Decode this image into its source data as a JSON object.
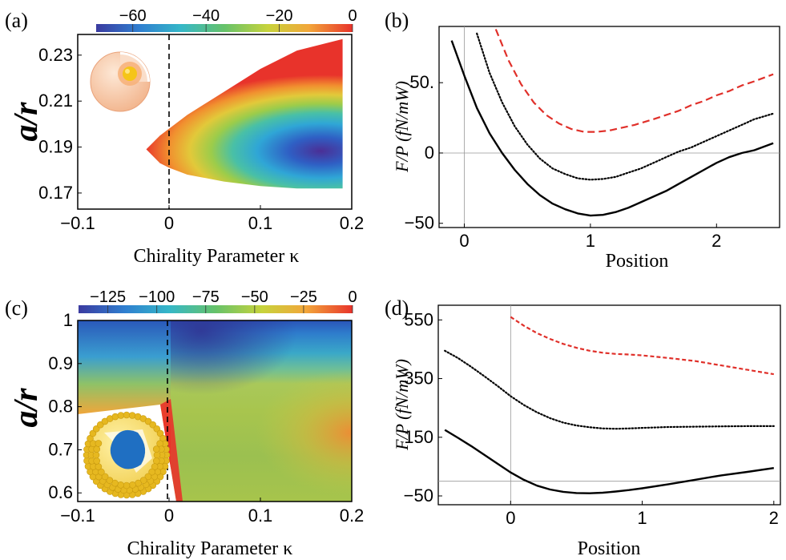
{
  "colorscale": [
    "#3b3ba0",
    "#2f7fd0",
    "#35b7c8",
    "#66c26a",
    "#c7d33c",
    "#f2a63a",
    "#e8332b"
  ],
  "panels": [
    {
      "id": "a",
      "label": "(a)",
      "type": "heatmap",
      "xlabel": "Chirality Parameter κ",
      "ylabel": "a/r",
      "xlim": [
        -0.1,
        0.2
      ],
      "ylim": [
        0.163,
        0.239
      ],
      "xticks": [
        -0.1,
        0,
        0.1,
        0.2
      ],
      "xtick_labels": [
        "−0.1",
        "0",
        "0.1",
        "0.2"
      ],
      "yticks": [
        0.17,
        0.19,
        0.21,
        0.23
      ],
      "ytick_labels": [
        "0.17",
        "0.19",
        "0.21",
        "0.23"
      ],
      "colorbar": {
        "range": [
          -70,
          0
        ],
        "ticks": [
          -60,
          -40,
          -20,
          0
        ],
        "tick_labels": [
          "−60",
          "−40",
          "−20",
          "0"
        ]
      },
      "minimum": {
        "kappa": 0.17,
        "ar": 0.191,
        "value": -70
      },
      "region_boundary": [
        [
          -0.025,
          0.189
        ],
        [
          -0.01,
          0.195
        ],
        [
          0.02,
          0.204
        ],
        [
          0.06,
          0.214
        ],
        [
          0.1,
          0.224
        ],
        [
          0.14,
          0.232
        ],
        [
          0.19,
          0.237
        ],
        [
          0.19,
          0.172
        ],
        [
          0.14,
          0.172
        ],
        [
          0.1,
          0.173
        ],
        [
          0.06,
          0.175
        ],
        [
          0.02,
          0.178
        ],
        [
          0.0,
          0.181
        ],
        [
          -0.01,
          0.183
        ],
        [
          -0.025,
          0.189
        ]
      ],
      "dashed_line_x": 0,
      "inset_icon": "sphere-cutaway-icon"
    },
    {
      "id": "c",
      "label": "(c)",
      "type": "heatmap",
      "xlabel": "Chirality Parameter κ",
      "ylabel": "a/r",
      "xlim": [
        -0.1,
        0.2
      ],
      "ylim": [
        0.58,
        1.0
      ],
      "xticks": [
        -0.1,
        0,
        0.1,
        0.2
      ],
      "xtick_labels": [
        "−0.1",
        "0",
        "0.1",
        "0.2"
      ],
      "yticks": [
        0.6,
        0.7,
        0.8,
        0.9,
        1.0
      ],
      "ytick_labels": [
        "0.6",
        "0.7",
        "0.8",
        "0.9",
        "1"
      ],
      "colorbar": {
        "range": [
          -140,
          0
        ],
        "ticks": [
          -125,
          -100,
          -75,
          -50,
          -25,
          0
        ],
        "tick_labels": [
          "−125",
          "−100",
          "−75",
          "−50",
          "−25",
          "0"
        ]
      },
      "dashed_line_x": 0,
      "inset_icon": "sphere-with-nanoparticles-icon"
    },
    {
      "id": "b",
      "label": "(b)",
      "type": "line",
      "xlabel": "Position",
      "ylabel": "F/P (fN/mW)",
      "xlim": [
        -0.2,
        2.5
      ],
      "ylim": [
        -53,
        90
      ],
      "xticks": [
        0,
        1,
        2
      ],
      "xtick_labels": [
        "0",
        "1",
        "2"
      ],
      "yticks": [
        -50,
        0,
        50
      ],
      "ytick_labels": [
        "−50",
        "0",
        "50."
      ],
      "series": [
        {
          "style": "solid",
          "color": "#000000",
          "x": [
            -0.1,
            0.0,
            0.1,
            0.2,
            0.3,
            0.4,
            0.5,
            0.6,
            0.7,
            0.8,
            0.9,
            1.0,
            1.1,
            1.2,
            1.3,
            1.4,
            1.5,
            1.6,
            1.7,
            1.8,
            1.9,
            2.0,
            2.1,
            2.2,
            2.3,
            2.45
          ],
          "y": [
            80,
            55,
            32,
            14,
            0,
            -12,
            -22,
            -30,
            -36,
            -40,
            -43,
            -44.5,
            -44,
            -42,
            -39,
            -35,
            -31,
            -27,
            -22,
            -17,
            -12,
            -7,
            -3,
            0,
            2,
            7
          ]
        },
        {
          "style": "dotted",
          "color": "#000000",
          "x": [
            0.1,
            0.2,
            0.3,
            0.4,
            0.5,
            0.6,
            0.7,
            0.8,
            0.9,
            1.0,
            1.1,
            1.2,
            1.3,
            1.4,
            1.5,
            1.6,
            1.7,
            1.8,
            1.9,
            2.0,
            2.1,
            2.2,
            2.3,
            2.45
          ],
          "y": [
            85,
            57,
            36,
            19,
            6,
            -4,
            -11,
            -15,
            -18,
            -19,
            -18.5,
            -17,
            -14,
            -11,
            -7,
            -3,
            1,
            4,
            8,
            12,
            16,
            20,
            24,
            28
          ]
        },
        {
          "style": "dashed",
          "color": "#e0302a",
          "x": [
            0.25,
            0.35,
            0.45,
            0.55,
            0.65,
            0.75,
            0.85,
            0.95,
            1.05,
            1.15,
            1.25,
            1.35,
            1.5,
            1.6,
            1.7,
            1.8,
            1.9,
            2.0,
            2.1,
            2.2,
            2.3,
            2.45
          ],
          "y": [
            88,
            66,
            49,
            36,
            27,
            21,
            17,
            15,
            15,
            16,
            18,
            20,
            24,
            27,
            30,
            34,
            37,
            41,
            44,
            48,
            51,
            56
          ]
        }
      ]
    },
    {
      "id": "d",
      "label": "(d)",
      "type": "line",
      "xlabel": "Position",
      "ylabel": "F/P (fN/mW)",
      "xlim": [
        -0.55,
        2.05
      ],
      "ylim": [
        -80,
        600
      ],
      "xticks": [
        0,
        1,
        2
      ],
      "xtick_labels": [
        "0",
        "1",
        "2"
      ],
      "yticks": [
        -50,
        150,
        350,
        550
      ],
      "ytick_labels": [
        "−50",
        "150",
        "350",
        "550"
      ],
      "series": [
        {
          "style": "solid",
          "color": "#000000",
          "x": [
            -0.5,
            -0.4,
            -0.3,
            -0.2,
            -0.1,
            0.0,
            0.1,
            0.2,
            0.3,
            0.4,
            0.5,
            0.6,
            0.7,
            0.8,
            0.9,
            1.0,
            1.2,
            1.4,
            1.6,
            1.8,
            2.0
          ],
          "y": [
            175,
            148,
            120,
            90,
            60,
            30,
            5,
            -15,
            -28,
            -36,
            -40,
            -41,
            -39,
            -35,
            -30,
            -24,
            -10,
            5,
            20,
            32,
            45
          ]
        },
        {
          "style": "dotted",
          "color": "#000000",
          "x": [
            -0.5,
            -0.4,
            -0.3,
            -0.2,
            -0.1,
            0.0,
            0.1,
            0.2,
            0.3,
            0.4,
            0.5,
            0.6,
            0.7,
            0.8,
            0.9,
            1.0,
            1.2,
            1.4,
            1.6,
            1.8,
            2.0
          ],
          "y": [
            445,
            420,
            390,
            358,
            325,
            290,
            260,
            235,
            215,
            200,
            190,
            184,
            180,
            179,
            180,
            182,
            185,
            186,
            187,
            188,
            188
          ]
        },
        {
          "style": "dashed",
          "color": "#e0302a",
          "x": [
            0.0,
            0.1,
            0.2,
            0.3,
            0.4,
            0.5,
            0.6,
            0.7,
            0.8,
            0.9,
            1.0,
            1.2,
            1.4,
            1.6,
            1.8,
            2.0
          ],
          "y": [
            560,
            530,
            505,
            485,
            468,
            455,
            445,
            438,
            434,
            432,
            429,
            420,
            410,
            395,
            380,
            365
          ]
        }
      ]
    }
  ]
}
